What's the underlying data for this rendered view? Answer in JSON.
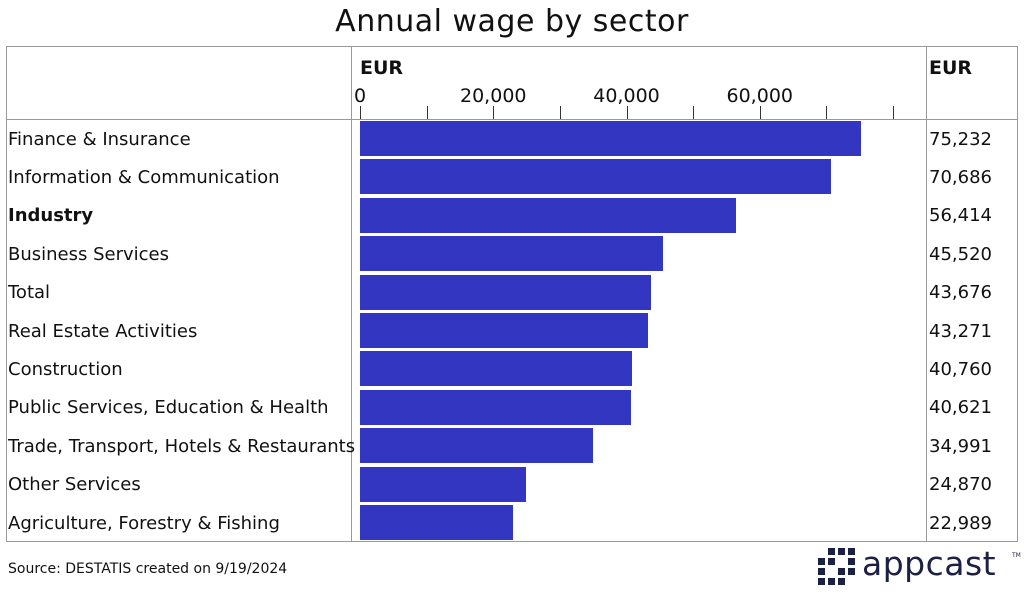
{
  "chart_data": {
    "type": "bar",
    "orientation": "horizontal",
    "title": "Annual wage by sector",
    "xlabel": "EUR",
    "value_column_label": "EUR",
    "xlim": [
      0,
      80000
    ],
    "xticks": [
      0,
      20000,
      40000,
      60000
    ],
    "xtick_labels": [
      "0",
      "20,000",
      "40,000",
      "60,000"
    ],
    "categories": [
      "Finance & Insurance",
      "Information & Communication",
      "Industry",
      "Business Services",
      "Total",
      "Real Estate Activities",
      "Construction",
      "Public Services, Education & Health",
      "Trade, Transport, Hotels & Restaurants",
      "Other Services",
      "Agriculture, Forestry & Fishing"
    ],
    "values": [
      75232,
      70686,
      56414,
      45520,
      43676,
      43271,
      40760,
      40621,
      34991,
      24870,
      22989
    ],
    "value_labels": [
      "75,232",
      "70,686",
      "56,414",
      "45,520",
      "43,676",
      "43,271",
      "40,760",
      "40,621",
      "34,991",
      "24,870",
      "22,989"
    ],
    "bold_categories": [
      "Industry"
    ],
    "bar_color": "#3336c0",
    "grid": false
  },
  "footer": {
    "source": "Source: DESTATIS created on 9/19/2024",
    "logo_text": "appcast",
    "logo_tm": "TM"
  },
  "colors": {
    "logo": "#1c2045",
    "border": "#999999"
  }
}
